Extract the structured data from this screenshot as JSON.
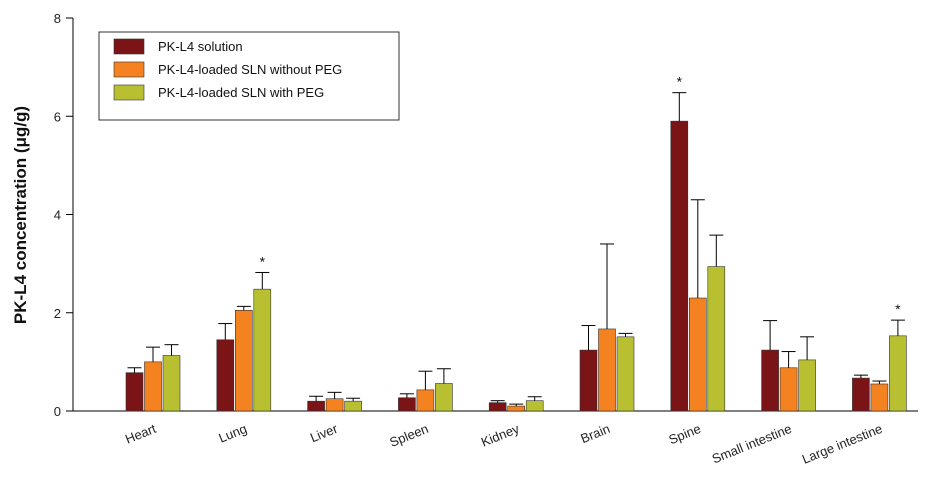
{
  "chart_data": {
    "type": "bar",
    "ylabel": "PK-L4 concentration (μg/g)",
    "xlabel": "",
    "ylim": [
      0,
      8
    ],
    "yticks": [
      "0",
      "2",
      "4",
      "6",
      "8"
    ],
    "grid": false,
    "legend_position": "top-left",
    "categories": [
      "Heart",
      "Lung",
      "Liver",
      "Spleen",
      "Kidney",
      "Brain",
      "Spine",
      "Small intestine",
      "Large intestine"
    ],
    "series": [
      {
        "name": "PK-L4 solution",
        "color": "#7a1416",
        "values": [
          0.78,
          1.45,
          0.2,
          0.27,
          0.17,
          1.24,
          5.9,
          1.24,
          0.67
        ],
        "errors": [
          0.1,
          0.33,
          0.1,
          0.08,
          0.04,
          0.5,
          0.58,
          0.6,
          0.06
        ],
        "significance": [
          "",
          "",
          "",
          "",
          "",
          "",
          "*",
          "",
          ""
        ]
      },
      {
        "name": "PK-L4-loaded SLN without PEG",
        "color": "#f58220",
        "values": [
          1.0,
          2.05,
          0.25,
          0.43,
          0.1,
          1.67,
          2.3,
          0.88,
          0.55
        ],
        "errors": [
          0.3,
          0.08,
          0.13,
          0.38,
          0.04,
          1.73,
          2.0,
          0.33,
          0.06
        ],
        "significance": [
          "",
          "",
          "",
          "",
          "",
          "",
          "",
          "",
          ""
        ]
      },
      {
        "name": "PK-L4-loaded SLN with PEG",
        "color": "#b8c032",
        "values": [
          1.13,
          2.48,
          0.2,
          0.56,
          0.21,
          1.51,
          2.94,
          1.04,
          1.53
        ],
        "errors": [
          0.22,
          0.34,
          0.06,
          0.3,
          0.08,
          0.07,
          0.64,
          0.47,
          0.32
        ],
        "significance": [
          "",
          "*",
          "",
          "",
          "",
          "",
          "",
          "",
          "*"
        ]
      }
    ]
  }
}
